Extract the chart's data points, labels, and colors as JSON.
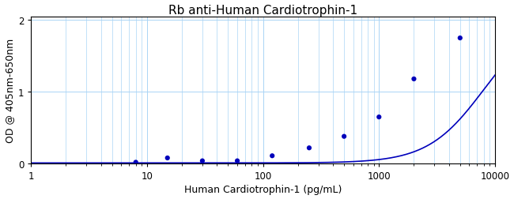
{
  "title": "Rb anti-Human Cardiotrophin-1",
  "xlabel": "Human Cardiotrophin-1 (pg/mL)",
  "ylabel": "OD @ 405nm-650nm",
  "xlim": [
    1,
    10000
  ],
  "ylim": [
    0,
    2.05
  ],
  "yticks": [
    0,
    1,
    2
  ],
  "data_x": [
    8,
    15,
    30,
    60,
    120,
    250,
    500,
    1000,
    2000,
    5000
  ],
  "data_y": [
    0.02,
    0.08,
    0.04,
    0.04,
    0.11,
    0.22,
    0.38,
    0.65,
    1.18,
    1.75
  ],
  "curve_color": "#0000bb",
  "dot_color": "#0000bb",
  "grid_color": "#aad4f5",
  "background_color": "#ffffff",
  "title_fontsize": 11,
  "label_fontsize": 9,
  "tick_fontsize": 8.5
}
